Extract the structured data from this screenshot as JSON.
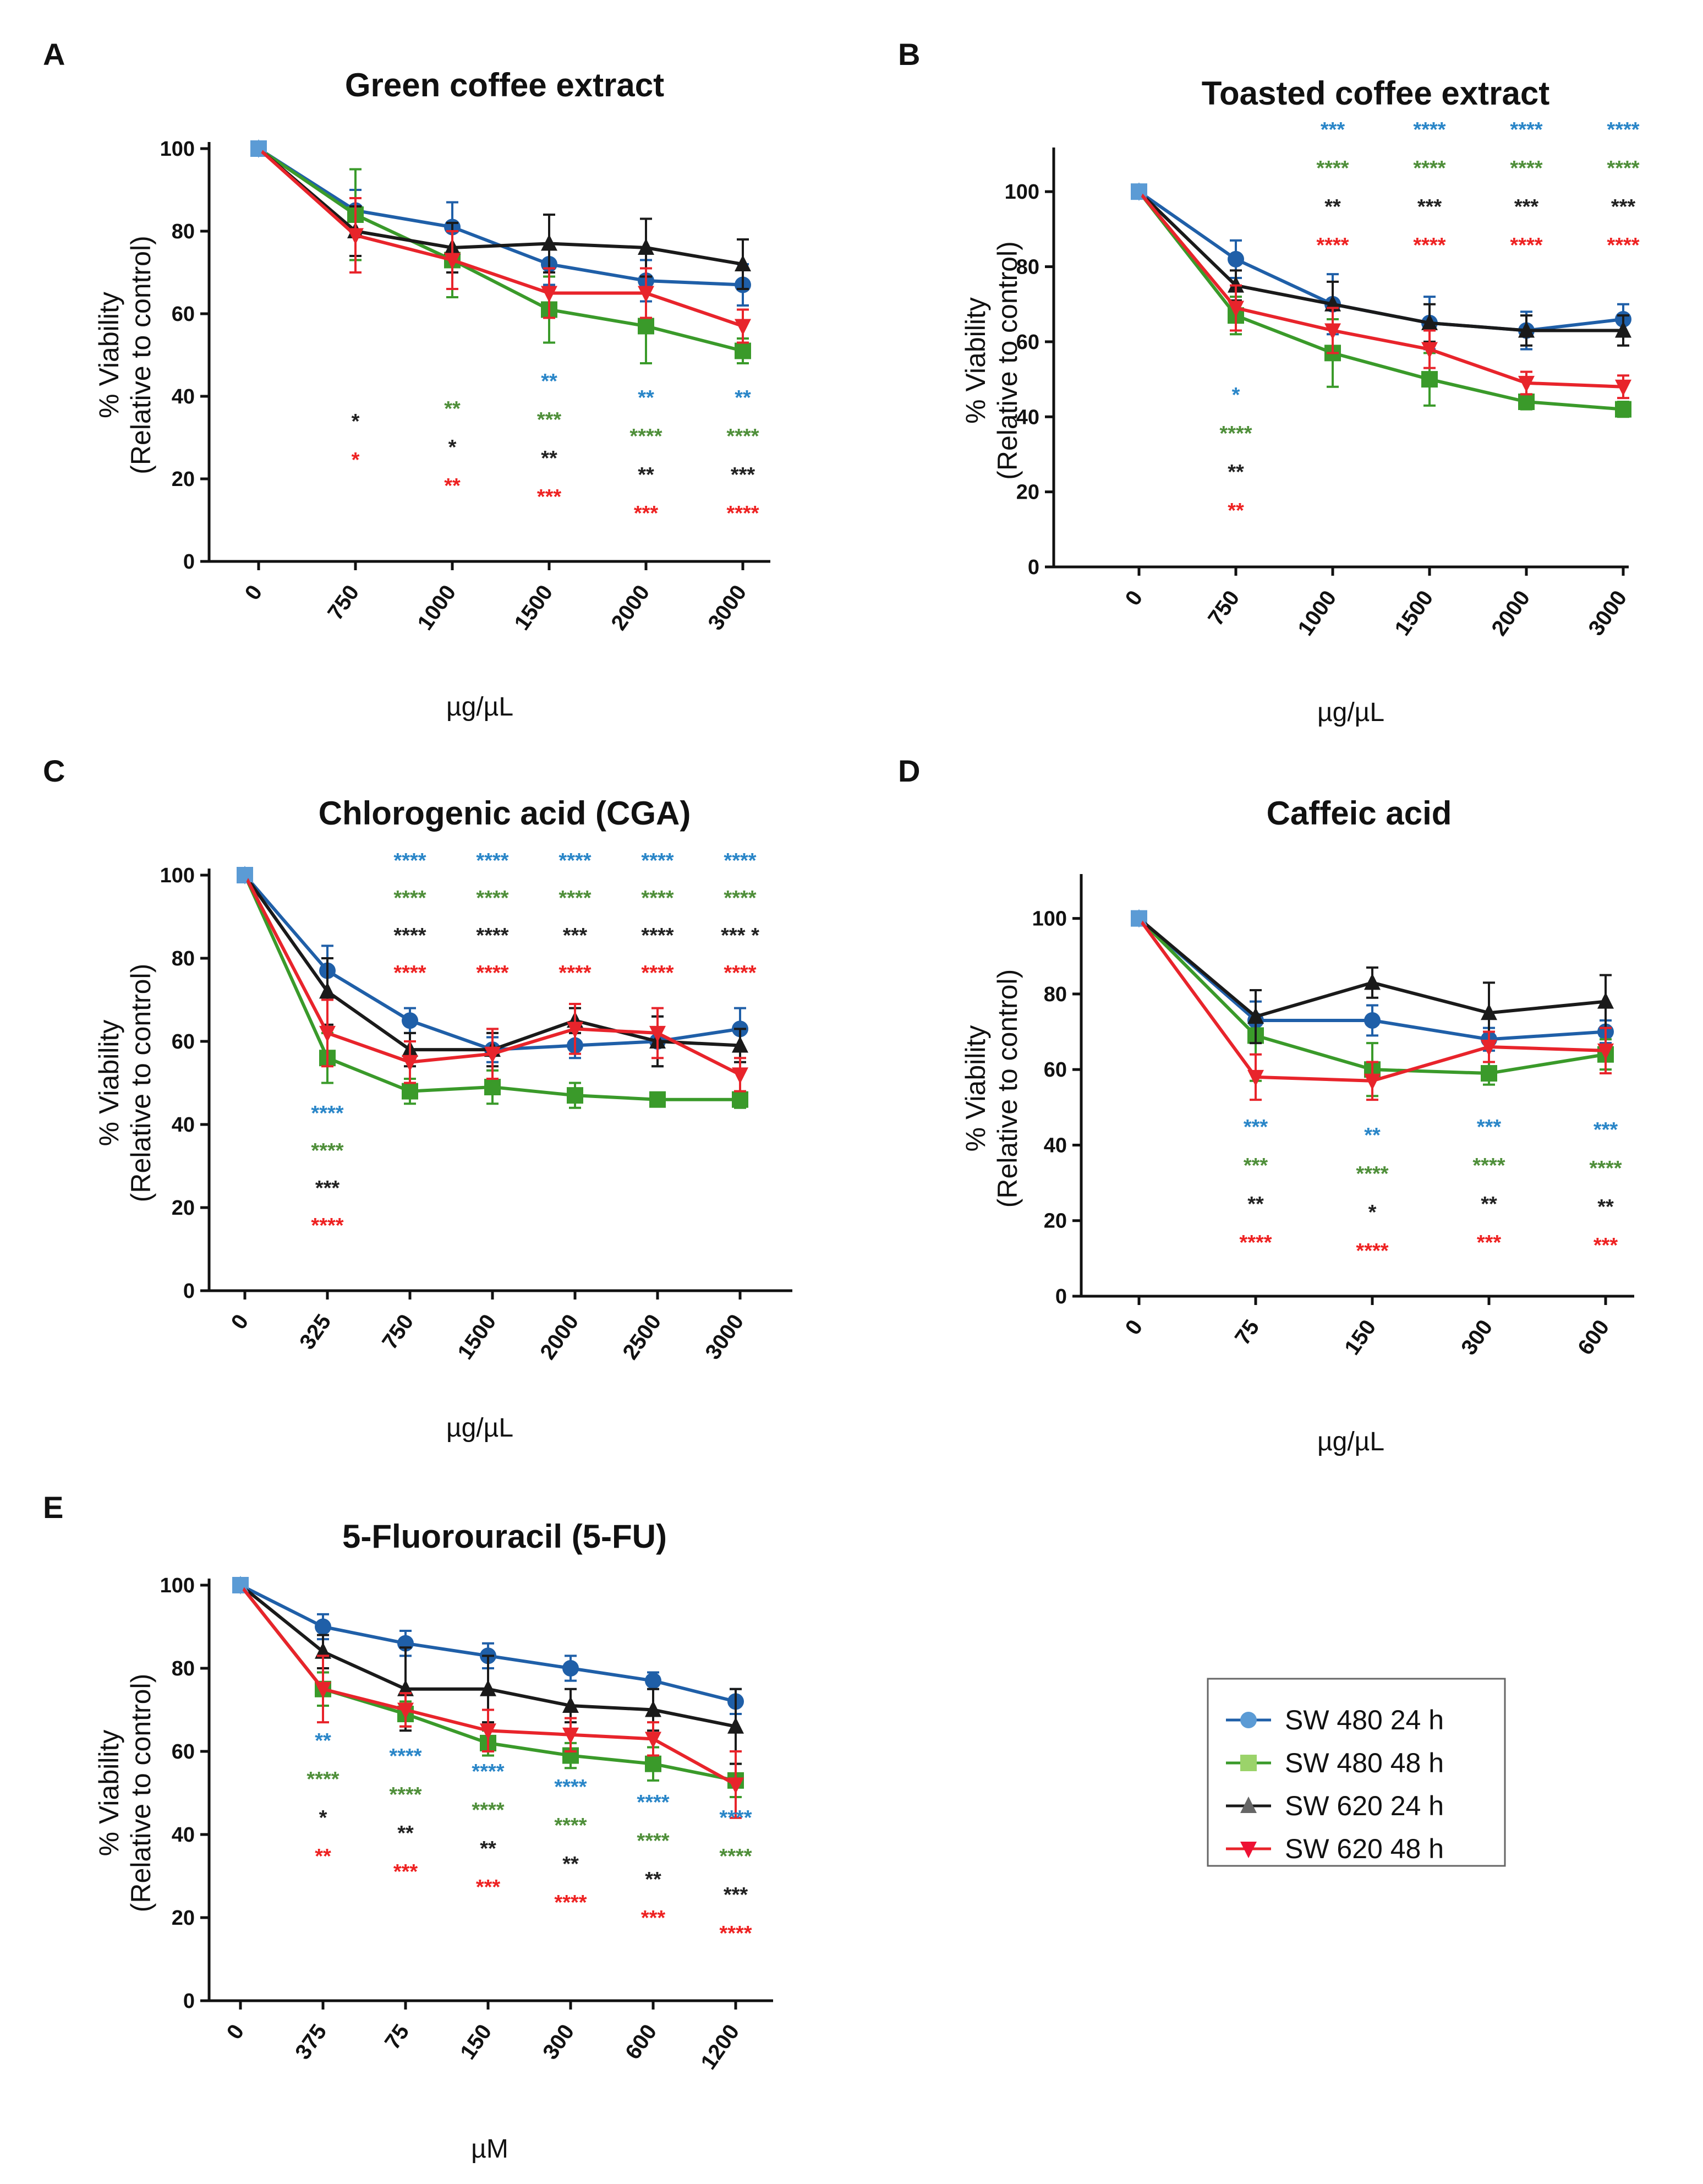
{
  "colors": {
    "sw480_24": "#1f5fa8",
    "sw480_48": "#3a9a2a",
    "sw620_24": "#1a1a1a",
    "sw620_48": "#e8242b",
    "sig_sw480_24": "#2a86c8",
    "sig_sw480_48": "#4f8f3a",
    "sig_sw620_24": "#222222",
    "sig_sw620_48": "#ee2222",
    "marker_sw480_24": "#5b9bd5",
    "marker_sw480_48": "#9bd36a",
    "marker_sw620_24": "#666666",
    "marker_sw620_48": "#ee1133"
  },
  "legend": {
    "items": [
      {
        "label": "SW 480 24 h",
        "key": "sw480_24",
        "marker": "circle"
      },
      {
        "label": "SW 480 48 h",
        "key": "sw480_48",
        "marker": "square"
      },
      {
        "label": "SW 620 24 h",
        "key": "sw620_24",
        "marker": "triangle-up"
      },
      {
        "label": "SW 620 48 h",
        "key": "sw620_48",
        "marker": "triangle-down"
      }
    ]
  },
  "chart_data": [
    {
      "panel": "A",
      "type": "line",
      "title": "Green coffee extract",
      "xlabel": "µg/µL",
      "ylabel": "% Viability",
      "ylabel2": "(Relative to control)",
      "categories": [
        "0",
        "750",
        "1000",
        "1500",
        "2000",
        "3000"
      ],
      "ylim": [
        0,
        100
      ],
      "yticks": [
        0,
        20,
        40,
        60,
        80,
        100
      ],
      "series": [
        {
          "name": "SW 480 24 h",
          "key": "sw480_24",
          "values": [
            100,
            85,
            81,
            72,
            68,
            67
          ],
          "errors": [
            0,
            5,
            6,
            5,
            5,
            5
          ]
        },
        {
          "name": "SW 480 48 h",
          "key": "sw480_48",
          "values": [
            100,
            84,
            73,
            61,
            57,
            51
          ],
          "errors": [
            0,
            11,
            9,
            8,
            9,
            3
          ]
        },
        {
          "name": "SW 620 24 h",
          "key": "sw620_24",
          "values": [
            100,
            80,
            76,
            77,
            76,
            72
          ],
          "errors": [
            0,
            6,
            6,
            7,
            7,
            6
          ]
        },
        {
          "name": "SW 620 48 h",
          "key": "sw620_48",
          "values": [
            100,
            79,
            73,
            65,
            65,
            57
          ],
          "errors": [
            0,
            9,
            7,
            6,
            6,
            4
          ]
        }
      ],
      "significance": [
        {
          "category": "750",
          "marks": [
            "",
            "",
            "*",
            "*"
          ]
        },
        {
          "category": "1000",
          "marks": [
            "",
            "**",
            "*",
            "**"
          ]
        },
        {
          "category": "1500",
          "marks": [
            "**",
            "***",
            "**",
            "***"
          ]
        },
        {
          "category": "2000",
          "marks": [
            "**",
            "****",
            "**",
            "***"
          ]
        },
        {
          "category": "3000",
          "marks": [
            "**",
            "****",
            "***",
            "****"
          ]
        }
      ]
    },
    {
      "panel": "B",
      "type": "line",
      "title": "Toasted coffee extract",
      "xlabel": "µg/µL",
      "ylabel": "% Viability",
      "ylabel2": "(Relative to control)",
      "categories": [
        "0",
        "750",
        "1000",
        "1500",
        "2000",
        "3000"
      ],
      "ylim": [
        0,
        110
      ],
      "yticks": [
        0,
        20,
        40,
        60,
        80,
        100
      ],
      "series": [
        {
          "name": "SW 480 24 h",
          "key": "sw480_24",
          "values": [
            100,
            82,
            70,
            65,
            63,
            66
          ],
          "errors": [
            0,
            5,
            8,
            7,
            5,
            4
          ]
        },
        {
          "name": "SW 480 48 h",
          "key": "sw480_48",
          "values": [
            100,
            67,
            57,
            50,
            44,
            42
          ],
          "errors": [
            0,
            5,
            9,
            7,
            2,
            2
          ]
        },
        {
          "name": "SW 620 24 h",
          "key": "sw620_24",
          "values": [
            100,
            75,
            70,
            65,
            63,
            63
          ],
          "errors": [
            0,
            4,
            6,
            5,
            4,
            4
          ]
        },
        {
          "name": "SW 620 48 h",
          "key": "sw620_48",
          "values": [
            100,
            69,
            63,
            58,
            49,
            48
          ],
          "errors": [
            0,
            6,
            6,
            5,
            3,
            3
          ]
        }
      ],
      "significance": [
        {
          "category": "750",
          "marks": [
            "*",
            "****",
            "**",
            "**"
          ]
        },
        {
          "category": "1000",
          "marks": [
            "***",
            "****",
            "**",
            "****"
          ]
        },
        {
          "category": "1500",
          "marks": [
            "****",
            "****",
            "***",
            "****"
          ]
        },
        {
          "category": "2000",
          "marks": [
            "****",
            "****",
            "***",
            "****"
          ]
        },
        {
          "category": "3000",
          "marks": [
            "****",
            "****",
            "***",
            "****"
          ]
        }
      ]
    },
    {
      "panel": "C",
      "type": "line",
      "title": "Chlorogenic acid (CGA)",
      "xlabel": "µg/µL",
      "ylabel": "% Viability",
      "ylabel2": "(Relative to control)",
      "categories": [
        "0",
        "325",
        "750",
        "1500",
        "2000",
        "2500",
        "3000"
      ],
      "ylim": [
        0,
        100
      ],
      "yticks": [
        0,
        20,
        40,
        60,
        80,
        100
      ],
      "series": [
        {
          "name": "SW 480 24 h",
          "key": "sw480_24",
          "values": [
            100,
            77,
            65,
            58,
            59,
            60,
            63
          ],
          "errors": [
            0,
            6,
            3,
            3,
            3,
            6,
            5
          ]
        },
        {
          "name": "SW 480 48 h",
          "key": "sw480_48",
          "values": [
            100,
            56,
            48,
            49,
            47,
            46,
            46
          ],
          "errors": [
            0,
            6,
            3,
            4,
            3,
            1,
            2
          ]
        },
        {
          "name": "SW 620 24 h",
          "key": "sw620_24",
          "values": [
            100,
            72,
            58,
            58,
            65,
            60,
            59
          ],
          "errors": [
            0,
            8,
            4,
            4,
            3,
            6,
            4
          ]
        },
        {
          "name": "SW 620 48 h",
          "key": "sw620_48",
          "values": [
            100,
            62,
            55,
            57,
            63,
            62,
            52
          ],
          "errors": [
            0,
            8,
            5,
            6,
            6,
            6,
            4
          ]
        }
      ],
      "significance": [
        {
          "category": "325",
          "marks": [
            "****",
            "****",
            "***",
            "****"
          ]
        },
        {
          "category": "750",
          "marks": [
            "****",
            "****",
            "****",
            "****"
          ]
        },
        {
          "category": "1500",
          "marks": [
            "****",
            "****",
            "****",
            "****"
          ]
        },
        {
          "category": "2000",
          "marks": [
            "****",
            "****",
            "***",
            "****"
          ]
        },
        {
          "category": "2500",
          "marks": [
            "****",
            "****",
            "****",
            "****"
          ]
        },
        {
          "category": "3000",
          "marks": [
            "****",
            "****",
            "*** *",
            "****"
          ]
        }
      ]
    },
    {
      "panel": "D",
      "type": "line",
      "title": "Caffeic acid",
      "xlabel": "µg/µL",
      "ylabel": "% Viability",
      "ylabel2": "(Relative to control)",
      "categories": [
        "0",
        "75",
        "150",
        "300",
        "600"
      ],
      "ylim": [
        0,
        110
      ],
      "yticks": [
        0,
        20,
        40,
        60,
        80,
        100
      ],
      "series": [
        {
          "name": "SW 480 24 h",
          "key": "sw480_24",
          "values": [
            100,
            73,
            73,
            68,
            70
          ],
          "errors": [
            0,
            5,
            4,
            3,
            3
          ]
        },
        {
          "name": "SW 480 48 h",
          "key": "sw480_48",
          "values": [
            100,
            69,
            60,
            59,
            64
          ],
          "errors": [
            0,
            12,
            7,
            3,
            4
          ]
        },
        {
          "name": "SW 620 24 h",
          "key": "sw620_24",
          "values": [
            100,
            74,
            83,
            75,
            78
          ],
          "errors": [
            0,
            7,
            4,
            8,
            7
          ]
        },
        {
          "name": "SW 620 48 h",
          "key": "sw620_48",
          "values": [
            100,
            58,
            57,
            66,
            65
          ],
          "errors": [
            0,
            6,
            5,
            4,
            6
          ]
        }
      ],
      "significance": [
        {
          "category": "75",
          "marks": [
            "***",
            "***",
            "**",
            "****"
          ]
        },
        {
          "category": "150",
          "marks": [
            "**",
            "****",
            "*",
            "****"
          ]
        },
        {
          "category": "300",
          "marks": [
            "***",
            "****",
            "**",
            "***"
          ]
        },
        {
          "category": "600",
          "marks": [
            "***",
            "****",
            "**",
            "***"
          ]
        }
      ]
    },
    {
      "panel": "E",
      "type": "line",
      "title": "5-Fluorouracil (5-FU)",
      "xlabel": "µM",
      "ylabel": "% Viability",
      "ylabel2": "(Relative to control)",
      "categories": [
        "0",
        "375",
        "75",
        "150",
        "300",
        "600",
        "1200"
      ],
      "ylim": [
        0,
        100
      ],
      "yticks": [
        0,
        20,
        40,
        60,
        80,
        100
      ],
      "series": [
        {
          "name": "SW 480 24 h",
          "key": "sw480_24",
          "values": [
            100,
            90,
            86,
            83,
            80,
            77,
            72
          ],
          "errors": [
            0,
            3,
            3,
            3,
            3,
            2,
            3
          ]
        },
        {
          "name": "SW 480 48 h",
          "key": "sw480_48",
          "values": [
            100,
            75,
            69,
            62,
            59,
            57,
            53
          ],
          "errors": [
            0,
            4,
            3,
            3,
            3,
            4,
            4
          ]
        },
        {
          "name": "SW 620 24 h",
          "key": "sw620_24",
          "values": [
            100,
            84,
            75,
            75,
            71,
            70,
            66
          ],
          "errors": [
            0,
            4,
            10,
            8,
            4,
            5,
            9
          ]
        },
        {
          "name": "SW 620 48 h",
          "key": "sw620_48",
          "values": [
            100,
            75,
            70,
            65,
            64,
            63,
            52
          ],
          "errors": [
            0,
            8,
            4,
            5,
            4,
            4,
            8
          ]
        }
      ],
      "significance": [
        {
          "category": "375",
          "marks": [
            "**",
            "****",
            "*",
            "**"
          ]
        },
        {
          "category": "75",
          "marks": [
            "****",
            "****",
            "**",
            "***"
          ]
        },
        {
          "category": "150",
          "marks": [
            "****",
            "****",
            "**",
            "***"
          ]
        },
        {
          "category": "300",
          "marks": [
            "****",
            "****",
            "**",
            "****"
          ]
        },
        {
          "category": "600",
          "marks": [
            "****",
            "****",
            "**",
            "***"
          ]
        },
        {
          "category": "1200",
          "marks": [
            "****",
            "****",
            "***",
            "****"
          ]
        }
      ]
    }
  ]
}
